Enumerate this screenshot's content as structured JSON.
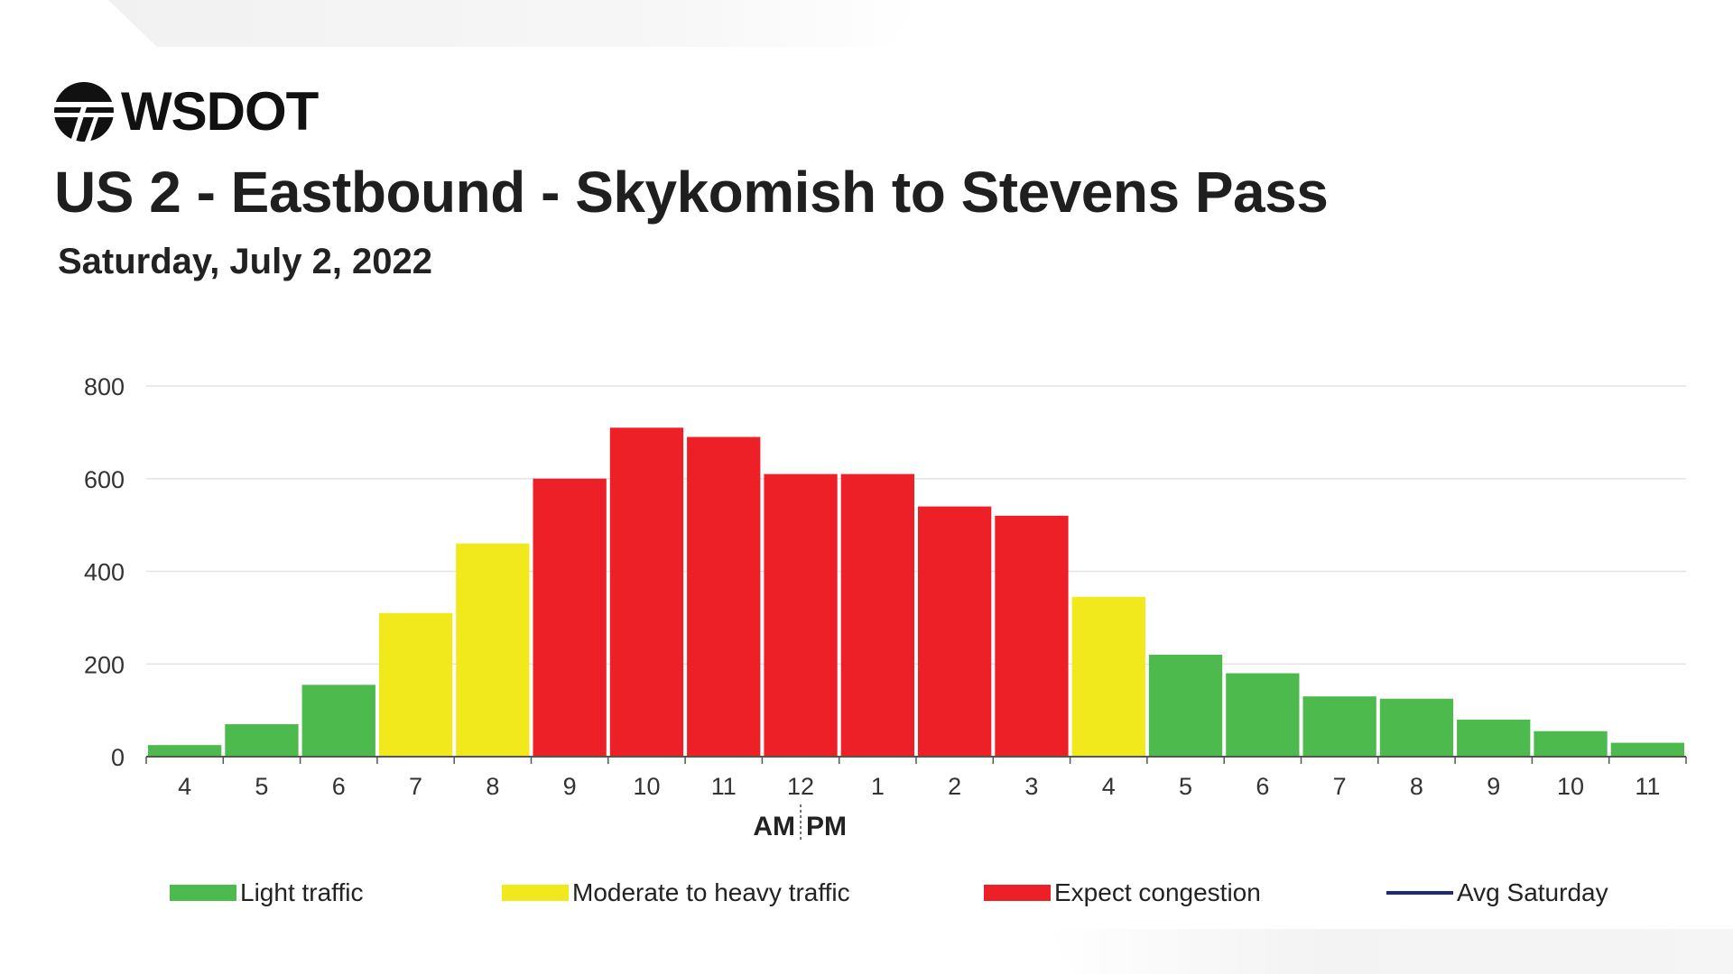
{
  "logo": {
    "text": "WSDOT"
  },
  "header": {
    "title": "US 2 - Eastbound - Skykomish to Stevens Pass",
    "subtitle": "Saturday, July 2, 2022"
  },
  "colors": {
    "light": "#4cba4c",
    "moderate": "#f2e91c",
    "congestion": "#ee2027",
    "avg": "#1f2a6b",
    "grid": "#e4e4e4",
    "axis": "#555555"
  },
  "legend": {
    "light": "Light traffic",
    "moderate": "Moderate to heavy traffic",
    "congestion": "Expect congestion",
    "avg": "Avg Saturday"
  },
  "chart_data": {
    "type": "bar",
    "title": "",
    "xlabel": "",
    "ylabel": "",
    "ylim": [
      0,
      800
    ],
    "yticks": [
      0,
      200,
      400,
      600,
      800
    ],
    "grid": true,
    "legend_position": "bottom",
    "categories": [
      "4",
      "5",
      "6",
      "7",
      "8",
      "9",
      "10",
      "11",
      "12",
      "1",
      "2",
      "3",
      "4",
      "5",
      "6",
      "7",
      "8",
      "9",
      "10",
      "11"
    ],
    "values": [
      25,
      70,
      155,
      310,
      460,
      600,
      710,
      690,
      610,
      610,
      540,
      520,
      345,
      220,
      180,
      130,
      125,
      80,
      55,
      30
    ],
    "levels": [
      "light",
      "light",
      "light",
      "moderate",
      "moderate",
      "congestion",
      "congestion",
      "congestion",
      "congestion",
      "congestion",
      "congestion",
      "congestion",
      "moderate",
      "light",
      "light",
      "light",
      "light",
      "light",
      "light",
      "light"
    ],
    "am_label": "AM",
    "pm_label": "PM"
  }
}
